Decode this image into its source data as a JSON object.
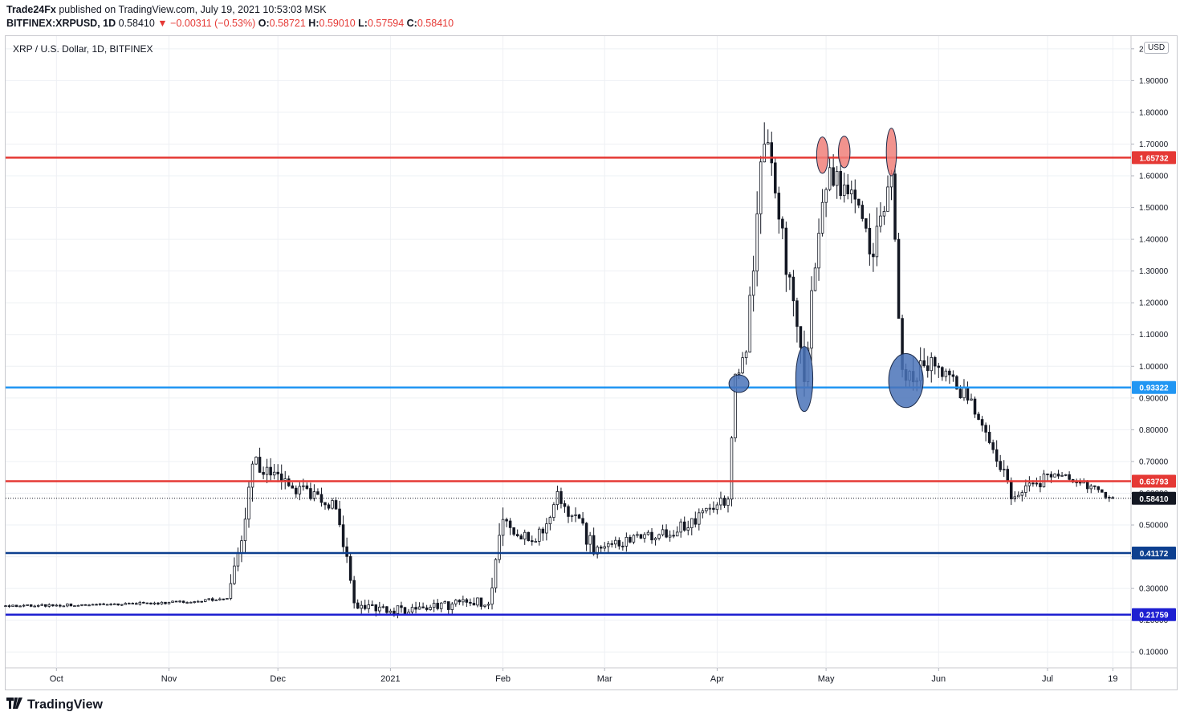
{
  "header": {
    "publisher": "Trade24Fx",
    "published_text": "published on TradingView.com, July 19, 2021 10:53:03 MSK",
    "symbol": "BITFINEX:XRPUSD, 1D",
    "last": "0.58410",
    "change": "▼ −0.00311 (−0.53%)",
    "o_label": "O:",
    "o_value": "0.58721",
    "h_label": "H:",
    "h_value": "0.59010",
    "l_label": "L:",
    "l_value": "0.57594",
    "c_label": "C:",
    "c_value": "0.58410"
  },
  "footer": {
    "brand": "TradingView"
  },
  "colors": {
    "up": "#131722",
    "down": "#131722",
    "red_line": "#e53935",
    "light_blue_line": "#2196f3",
    "dark_blue_line": "#0d3f8f",
    "blue_line": "#1d1fd1",
    "last_price_badge": "#131722",
    "ellipse_red": "#f0807a",
    "ellipse_blue": "#4a73b8"
  },
  "chart_data": {
    "type": "candlestick",
    "title": "XRP / U.S. Dollar, 1D, BITFINEX",
    "currency_badge": "USD",
    "ylim": [
      0.05,
      2.04
    ],
    "y_ticks": [
      "0.10000",
      "0.20000",
      "0.30000",
      "0.40000",
      "0.50000",
      "0.60000",
      "0.70000",
      "0.80000",
      "0.90000",
      "1.00000",
      "1.10000",
      "1.20000",
      "1.30000",
      "1.40000",
      "1.50000",
      "1.60000",
      "1.70000",
      "1.80000",
      "1.90000",
      "2.00000"
    ],
    "x_labels": [
      {
        "label": "Oct",
        "date": "2020-10-01"
      },
      {
        "label": "Nov",
        "date": "2020-11-01"
      },
      {
        "label": "Dec",
        "date": "2020-12-01"
      },
      {
        "label": "2021",
        "date": "2021-01-01"
      },
      {
        "label": "Feb",
        "date": "2021-02-01"
      },
      {
        "label": "Mar",
        "date": "2021-03-01"
      },
      {
        "label": "Apr",
        "date": "2021-04-01"
      },
      {
        "label": "May",
        "date": "2021-05-01"
      },
      {
        "label": "Jun",
        "date": "2021-06-01"
      },
      {
        "label": "Jul",
        "date": "2021-07-01"
      },
      {
        "label": "19",
        "date": "2021-07-19"
      }
    ],
    "x_range": [
      "2020-09-17",
      "2021-07-24"
    ],
    "levels": [
      {
        "value": 1.65732,
        "label": "1.65732",
        "color": "red_line"
      },
      {
        "value": 0.93322,
        "label": "0.93322",
        "color": "light_blue_line"
      },
      {
        "value": 0.63793,
        "label": "0.63793",
        "color": "red_line"
      },
      {
        "value": 0.41172,
        "label": "0.41172",
        "color": "dark_blue_line"
      },
      {
        "value": 0.21759,
        "label": "0.21759",
        "color": "blue_line"
      }
    ],
    "last_price": {
      "value": 0.5841,
      "label": "0.58410"
    },
    "annotations": [
      {
        "shape": "ellipse",
        "color": "ellipse_red",
        "date": "2021-04-30",
        "value": 1.665,
        "date_span": 3.2,
        "value_span": 0.115
      },
      {
        "shape": "ellipse",
        "color": "ellipse_red",
        "date": "2021-05-06",
        "value": 1.675,
        "date_span": 3.2,
        "value_span": 0.1
      },
      {
        "shape": "ellipse",
        "color": "ellipse_red",
        "date": "2021-05-19",
        "value": 1.675,
        "date_span": 2.8,
        "value_span": 0.15
      },
      {
        "shape": "ellipse",
        "color": "ellipse_blue",
        "date": "2021-04-07",
        "value": 0.945,
        "date_span": 5.5,
        "value_span": 0.055
      },
      {
        "shape": "ellipse",
        "color": "ellipse_blue",
        "date": "2021-04-25",
        "value": 0.96,
        "date_span": 4.7,
        "value_span": 0.205
      },
      {
        "shape": "ellipse",
        "color": "ellipse_blue",
        "date": "2021-05-23",
        "value": 0.955,
        "date_span": 9.5,
        "value_span": 0.17
      }
    ],
    "segments": [
      {
        "from": "2020-09-17",
        "to": "2020-10-06",
        "start": 0.245,
        "end": 0.248,
        "vol": 0.008
      },
      {
        "from": "2020-10-06",
        "to": "2020-10-31",
        "start": 0.248,
        "end": 0.255,
        "vol": 0.007
      },
      {
        "from": "2020-10-31",
        "to": "2020-11-17",
        "start": 0.255,
        "end": 0.268,
        "vol": 0.008
      },
      {
        "from": "2020-11-17",
        "to": "2020-11-21",
        "start": 0.268,
        "end": 0.45,
        "vol": 0.05
      },
      {
        "from": "2020-11-21",
        "to": "2020-11-24",
        "start": 0.45,
        "end": 0.7,
        "vol": 0.08
      },
      {
        "from": "2020-11-24",
        "to": "2020-12-05",
        "start": 0.7,
        "end": 0.62,
        "vol": 0.05
      },
      {
        "from": "2020-12-05",
        "to": "2020-12-17",
        "start": 0.62,
        "end": 0.56,
        "vol": 0.04
      },
      {
        "from": "2020-12-17",
        "to": "2020-12-22",
        "start": 0.56,
        "end": 0.25,
        "vol": 0.06
      },
      {
        "from": "2020-12-22",
        "to": "2021-01-05",
        "start": 0.25,
        "end": 0.23,
        "vol": 0.03
      },
      {
        "from": "2021-01-05",
        "to": "2021-01-28",
        "start": 0.23,
        "end": 0.26,
        "vol": 0.03
      },
      {
        "from": "2021-01-28",
        "to": "2021-02-01",
        "start": 0.26,
        "end": 0.5,
        "vol": 0.07
      },
      {
        "from": "2021-02-01",
        "to": "2021-02-10",
        "start": 0.5,
        "end": 0.44,
        "vol": 0.04
      },
      {
        "from": "2021-02-10",
        "to": "2021-02-16",
        "start": 0.44,
        "end": 0.6,
        "vol": 0.05
      },
      {
        "from": "2021-02-16",
        "to": "2021-02-26",
        "start": 0.6,
        "end": 0.43,
        "vol": 0.05
      },
      {
        "from": "2021-02-26",
        "to": "2021-03-20",
        "start": 0.43,
        "end": 0.48,
        "vol": 0.03
      },
      {
        "from": "2021-03-20",
        "to": "2021-04-04",
        "start": 0.48,
        "end": 0.58,
        "vol": 0.04
      },
      {
        "from": "2021-04-04",
        "to": "2021-04-06",
        "start": 0.58,
        "end": 0.95,
        "vol": 0.06
      },
      {
        "from": "2021-04-06",
        "to": "2021-04-09",
        "start": 0.95,
        "end": 1.05,
        "vol": 0.05
      },
      {
        "from": "2021-04-09",
        "to": "2021-04-14",
        "start": 1.05,
        "end": 1.75,
        "vol": 0.12
      },
      {
        "from": "2021-04-14",
        "to": "2021-04-18",
        "start": 1.75,
        "end": 1.45,
        "vol": 0.1
      },
      {
        "from": "2021-04-18",
        "to": "2021-04-25",
        "start": 1.45,
        "end": 1.0,
        "vol": 0.1
      },
      {
        "from": "2021-04-25",
        "to": "2021-05-01",
        "start": 1.0,
        "end": 1.6,
        "vol": 0.1
      },
      {
        "from": "2021-05-01",
        "to": "2021-05-08",
        "start": 1.6,
        "end": 1.55,
        "vol": 0.08
      },
      {
        "from": "2021-05-08",
        "to": "2021-05-14",
        "start": 1.55,
        "end": 1.35,
        "vol": 0.08
      },
      {
        "from": "2021-05-14",
        "to": "2021-05-19",
        "start": 1.35,
        "end": 1.6,
        "vol": 0.1
      },
      {
        "from": "2021-05-19",
        "to": "2021-05-22",
        "start": 1.6,
        "end": 0.98,
        "vol": 0.1
      },
      {
        "from": "2021-05-22",
        "to": "2021-06-01",
        "start": 0.98,
        "end": 1.0,
        "vol": 0.08
      },
      {
        "from": "2021-06-01",
        "to": "2021-06-10",
        "start": 1.0,
        "end": 0.88,
        "vol": 0.05
      },
      {
        "from": "2021-06-10",
        "to": "2021-06-22",
        "start": 0.88,
        "end": 0.58,
        "vol": 0.05
      },
      {
        "from": "2021-06-22",
        "to": "2021-07-03",
        "start": 0.58,
        "end": 0.67,
        "vol": 0.04
      },
      {
        "from": "2021-07-03",
        "to": "2021-07-19",
        "start": 0.67,
        "end": 0.5841,
        "vol": 0.025
      }
    ]
  }
}
